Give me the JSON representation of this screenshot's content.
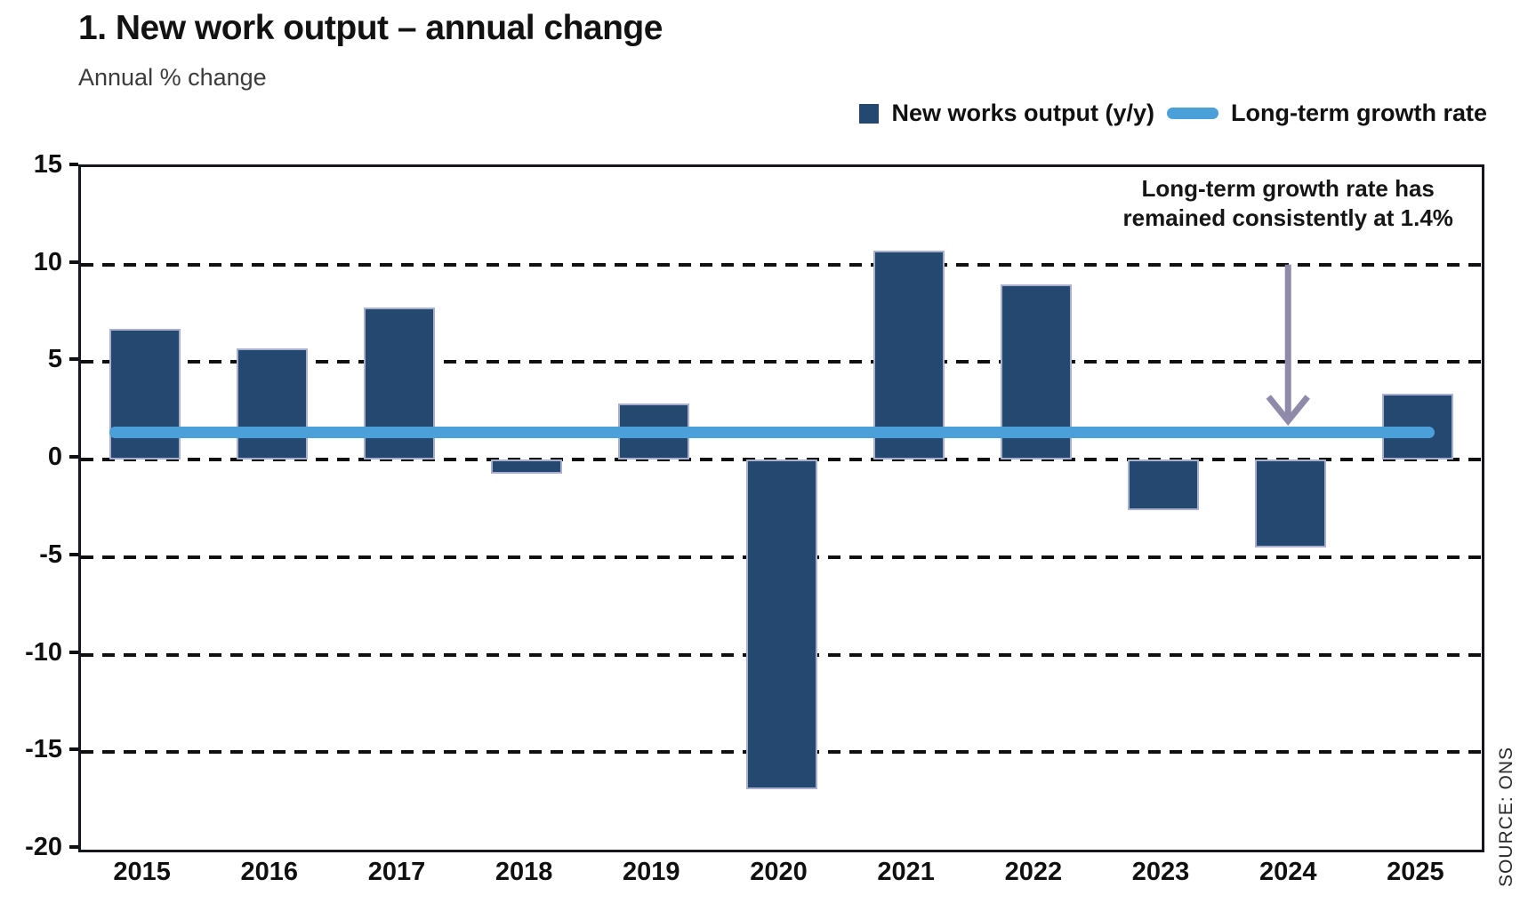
{
  "header": {
    "title": "1. New work output – annual change",
    "subtitle": "Annual % change"
  },
  "legend": {
    "series1_label": "New works output (y/y)",
    "series2_label": "Long-term growth rate"
  },
  "annotation": {
    "line1": "Long-term growth rate has",
    "line2": "remained consistently at 1.4%"
  },
  "source_label": "SOURCE: ONS",
  "colors": {
    "bar": "#254870",
    "bar_border": "#a8b0cd",
    "trendline": "#4ba0d9",
    "arrow": "#8f8aa9",
    "grid": "#101010"
  },
  "chart_data": {
    "type": "bar",
    "title": "1. New work output – annual change",
    "subtitle": "Annual % change",
    "categories": [
      "2015",
      "2016",
      "2017",
      "2018",
      "2019",
      "2020",
      "2021",
      "2022",
      "2023",
      "2024",
      "2025"
    ],
    "series": [
      {
        "name": "New works output (y/y)",
        "values": [
          6.7,
          5.7,
          7.8,
          -0.7,
          2.9,
          -16.9,
          10.7,
          9.0,
          -2.6,
          -4.5,
          3.4
        ]
      },
      {
        "name": "Long-term growth rate",
        "type": "line",
        "constant_value": 1.4
      }
    ],
    "ylabel": "Annual % change",
    "ylim": [
      -20,
      15
    ],
    "yticks": [
      15,
      10,
      5,
      0,
      -5,
      -10,
      -15,
      -20
    ],
    "gridline_values": [
      10,
      5,
      0,
      -5,
      -10,
      -15
    ],
    "grid": "dashed-horizontal",
    "legend_position": "top-right",
    "annotation_target_category": "2024",
    "source": "SOURCE: ONS"
  }
}
